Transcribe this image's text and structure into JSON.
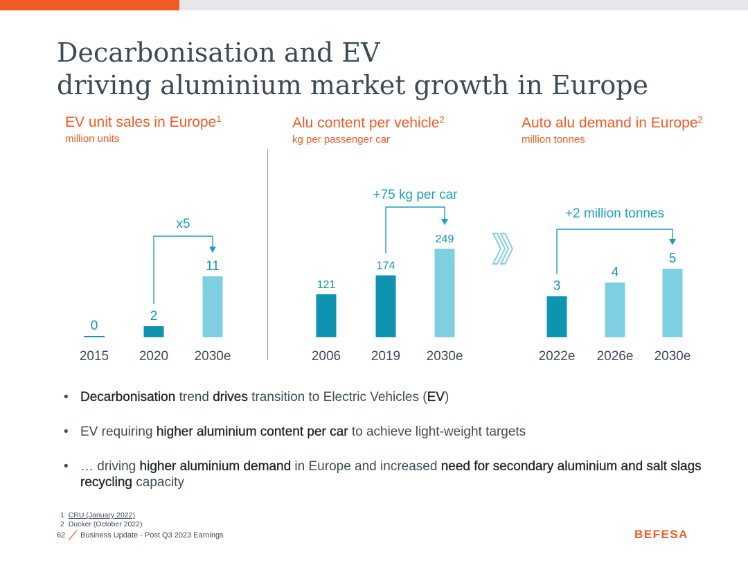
{
  "slide": {
    "title_line1": "Decarbonisation and EV",
    "title_line2": "driving aluminium market growth in Europe",
    "page_number": "62",
    "footer_text": "Business Update - Post Q3 2023 Earnings",
    "logo_text": "BEFESA"
  },
  "colors": {
    "accent": "#f15a24",
    "teal": "#1aa0be",
    "dark_teal": "#0e93b0",
    "light_teal": "#7fcfe2",
    "text": "#3d4a54"
  },
  "chart_data": [
    {
      "type": "bar",
      "title": "EV unit sales in Europe",
      "title_sup": "1",
      "subtitle": "million units",
      "categories": [
        "2015",
        "2020",
        "2030e"
      ],
      "values": [
        0,
        2,
        11
      ],
      "value_labels": [
        "0",
        "2",
        "11"
      ],
      "bar_styles": [
        "dark",
        "dark",
        "light"
      ],
      "annotation": "x5",
      "annotation_from": 1,
      "annotation_to": 2
    },
    {
      "type": "bar",
      "title": "Alu content per vehicle",
      "title_sup": "2",
      "subtitle": "kg per passenger car",
      "categories": [
        "2006",
        "2019",
        "2030e"
      ],
      "values": [
        121,
        174,
        249
      ],
      "value_labels": [
        "121",
        "174",
        "249"
      ],
      "bar_styles": [
        "dark",
        "dark",
        "light"
      ],
      "annotation": "+75 kg per car",
      "annotation_from": 1,
      "annotation_to": 2
    },
    {
      "type": "bar",
      "title": "Auto alu demand in Europe",
      "title_sup": "2",
      "subtitle": "million tonnes",
      "categories": [
        "2022e",
        "2026e",
        "2030e"
      ],
      "values": [
        3,
        4,
        5
      ],
      "value_labels": [
        "3",
        "4",
        "5"
      ],
      "bar_styles": [
        "dark",
        "light",
        "light"
      ],
      "annotation": "+2 million tonnes",
      "annotation_from": 0,
      "annotation_to": 2
    }
  ],
  "bullets": [
    [
      {
        "t": "Decarbonisation",
        "b": true
      },
      {
        "t": " trend ",
        "b": false
      },
      {
        "t": "drives",
        "b": true
      },
      {
        "t": " transition to Electric Vehicles (",
        "b": false
      },
      {
        "t": "EV",
        "b": true
      },
      {
        "t": ")",
        "b": false
      }
    ],
    [
      {
        "t": "EV requiring ",
        "b": false
      },
      {
        "t": "higher aluminium content per car",
        "b": true
      },
      {
        "t": " to achieve light-weight targets",
        "b": false
      }
    ],
    [
      {
        "t": "… driving ",
        "b": false
      },
      {
        "t": "higher aluminium demand",
        "b": true
      },
      {
        "t": " in Europe and increased ",
        "b": false
      },
      {
        "t": "need for secondary aluminium and salt slags recycling",
        "b": true
      },
      {
        "t": " capacity",
        "b": false
      }
    ]
  ],
  "footnotes": {
    "n1_num": "1",
    "n1_text": "CRU (January 2022)",
    "n2_num": "2",
    "n2_text": "Ducker (October 2022)"
  }
}
